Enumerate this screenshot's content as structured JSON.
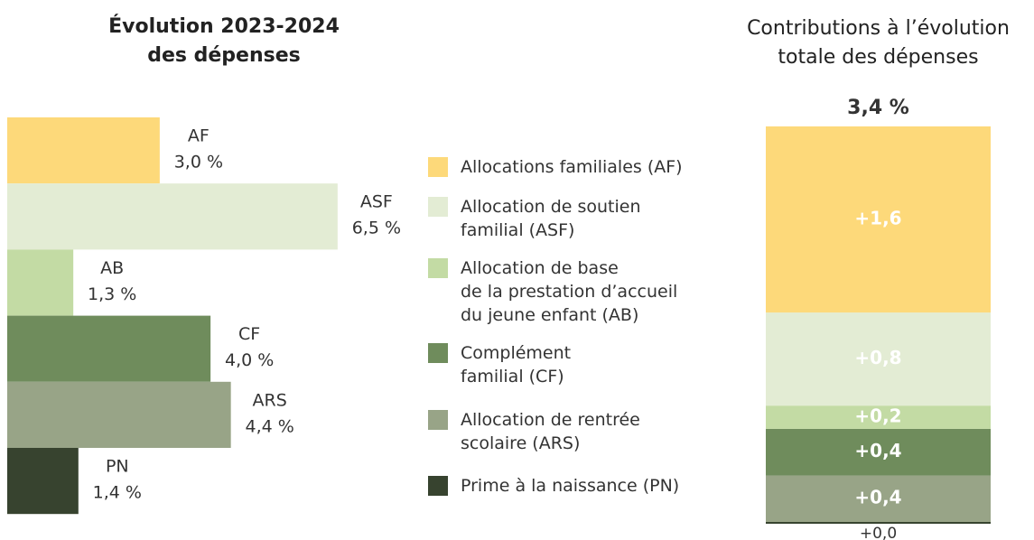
{
  "chart_data": [
    {
      "type": "hbar",
      "title": "Évolution 2023-2024\ndes dépenses",
      "categories": [
        "AF",
        "ASF",
        "AB",
        "CF",
        "ARS",
        "PN"
      ],
      "values": [
        3.0,
        6.5,
        1.3,
        4.0,
        4.4,
        1.4
      ],
      "value_labels": [
        "3,0 %",
        "6,5 %",
        "1,3 %",
        "4,0 %",
        "4,4 %",
        "1,4 %"
      ],
      "colors": [
        "#fdd97a",
        "#e3ecd4",
        "#c3dba4",
        "#6f8c5c",
        "#98a487",
        "#37432f"
      ],
      "xlim": [
        0,
        7
      ]
    },
    {
      "type": "stacked_bar",
      "title": "Contributions à l’évolution\ntotale des dépenses",
      "total": {
        "value": 3.4,
        "label": "3,4 %"
      },
      "categories": [
        null
      ],
      "series": [
        {
          "name": "Allocations familiales (AF)",
          "color": "#fdd97a",
          "values": [
            1.6
          ],
          "value_labels": [
            "+1,6"
          ]
        },
        {
          "name": "Allocation de soutien\nfamilial (ASF)",
          "color": "#e3ecd4",
          "values": [
            0.8
          ],
          "value_labels": [
            "+0,8"
          ]
        },
        {
          "name": "Allocation de base\nde la prestation d’accueil\ndu jeune enfant (AB)",
          "color": "#c3dba4",
          "values": [
            0.2
          ],
          "value_labels": [
            "+0,2"
          ]
        },
        {
          "name": "Complément\nfamilial (CF)",
          "color": "#6f8c5c",
          "values": [
            0.4
          ],
          "value_labels": [
            "+0,4"
          ]
        },
        {
          "name": "Allocation de rentrée\nscolaire (ARS)",
          "color": "#98a487",
          "values": [
            0.4
          ],
          "value_labels": [
            "+0,4"
          ]
        },
        {
          "name": "Prime à la naissance (PN)",
          "color": "#37432f",
          "values": [
            0.0
          ],
          "value_labels": [
            "+0,0"
          ]
        }
      ],
      "ylim": [
        0,
        3.4
      ]
    }
  ]
}
